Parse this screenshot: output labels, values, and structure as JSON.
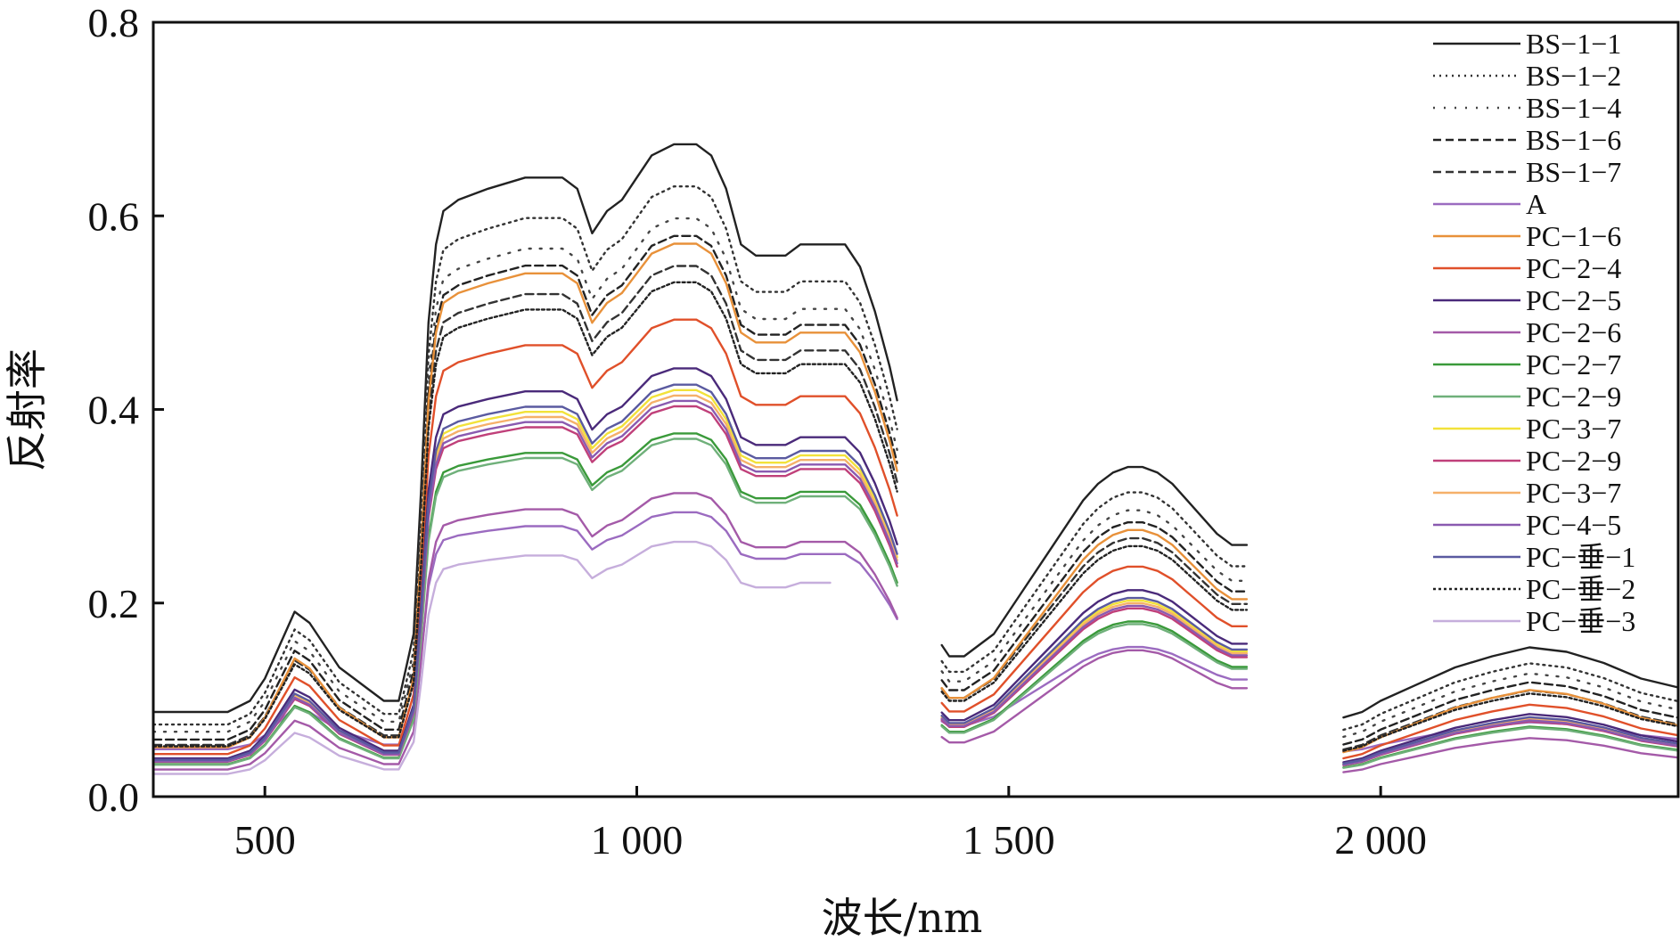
{
  "chart_data": {
    "type": "line",
    "title": "",
    "xlabel": "波长/nm",
    "ylabel": "反射率",
    "xlim": [
      350,
      2400
    ],
    "ylim": [
      0,
      0.8
    ],
    "x_ticks": [
      500,
      1000,
      1500,
      2000
    ],
    "x_tick_labels": [
      "500",
      "1 000",
      "1 500",
      "2 000"
    ],
    "y_ticks": [
      0,
      0.2,
      0.4,
      0.6,
      0.8
    ],
    "y_tick_labels": [
      "0.0",
      "0.2",
      "0.4",
      "0.6",
      "0.8"
    ],
    "grid": false,
    "legend_position": "top-right",
    "series": [
      {
        "name": "BS−1−1",
        "color": "#222222",
        "style": "solid",
        "scale": 1.15,
        "offset": 0.03,
        "band3_end": 2400
      },
      {
        "name": "BS−1−2",
        "color": "#333333",
        "style": "dotted",
        "scale": 1.09,
        "offset": 0.02,
        "band3_end": 2400
      },
      {
        "name": "BS−1−4",
        "color": "#444444",
        "style": "dotted-sparse",
        "scale": 1.04,
        "offset": 0.015,
        "band3_end": 2400
      },
      {
        "name": "BS−1−6",
        "color": "#222222",
        "style": "dashed",
        "scale": 1.02,
        "offset": 0.008,
        "band3_end": 2400
      },
      {
        "name": "BS−1−7",
        "color": "#333333",
        "style": "dashed",
        "scale": 0.97,
        "offset": 0.005,
        "band3_end": 2400
      },
      {
        "name": "A",
        "color": "#9b6bc0",
        "style": "solid",
        "scale": 0.48,
        "offset": 0.025,
        "band3_end": 2400
      },
      {
        "name": "PC−1−6",
        "color": "#e8913a",
        "style": "solid",
        "scale": 1.02,
        "offset": 0.0,
        "band3_end": 2400
      },
      {
        "name": "PC−2−4",
        "color": "#e0502a",
        "style": "solid",
        "scale": 0.88,
        "offset": 0.0,
        "band3_end": 2400
      },
      {
        "name": "PC−2−5",
        "color": "#4a2a7a",
        "style": "solid",
        "scale": 0.79,
        "offset": 0.0,
        "band3_end": 2400
      },
      {
        "name": "PC−2−6",
        "color": "#a45aa8",
        "style": "solid",
        "scale": 0.56,
        "offset": 0.0,
        "band3_end": 2400
      },
      {
        "name": "PC−2−7",
        "color": "#3a9a3a",
        "style": "solid",
        "scale": 0.67,
        "offset": 0.0,
        "band3_end": 2400
      },
      {
        "name": "PC−2−9",
        "color": "#6fb07a",
        "style": "solid",
        "scale": 0.66,
        "offset": 0.0,
        "band3_end": 2400
      },
      {
        "name": "PC−3−7",
        "color": "#f2e23a",
        "style": "solid",
        "scale": 0.75,
        "offset": 0.0,
        "band3_end": 2400
      },
      {
        "name": "PC−2−9",
        "color": "#c0407a",
        "style": "solid",
        "scale": 0.72,
        "offset": 0.0,
        "band3_end": 2400
      },
      {
        "name": "PC−3−7",
        "color": "#f5b06a",
        "style": "solid",
        "scale": 0.74,
        "offset": 0.0,
        "band3_end": 2400
      },
      {
        "name": "PC−4−5",
        "color": "#8a5ab0",
        "style": "solid",
        "scale": 0.73,
        "offset": 0.0,
        "band3_end": 2400
      },
      {
        "name": "PC−垂−1",
        "color": "#5a5aa0",
        "style": "solid",
        "scale": 0.76,
        "offset": 0.0,
        "band3_end": 2400
      },
      {
        "name": "PC−垂−2",
        "color": "#222222",
        "style": "dotted-dense",
        "scale": 0.94,
        "offset": 0.005,
        "band3_end": 2400
      },
      {
        "name": "PC−垂−3",
        "color": "#c6aedc",
        "style": "solid",
        "scale": 0.47,
        "offset": 0.0,
        "band3_end": 1270
      }
    ],
    "base_spectrum": {
      "band1_x": [
        350,
        400,
        450,
        480,
        500,
        520,
        540,
        560,
        580,
        600,
        620,
        640,
        660,
        680,
        700,
        710,
        720,
        730,
        740,
        760,
        800,
        850,
        900,
        920,
        940,
        960,
        980,
        1000,
        1020,
        1050,
        1080,
        1100,
        1120,
        1140,
        1160,
        1180,
        1200,
        1220,
        1240,
        1260,
        1280,
        1300,
        1320,
        1340,
        1350
      ],
      "band1_y": [
        0.05,
        0.05,
        0.05,
        0.06,
        0.08,
        0.11,
        0.14,
        0.13,
        0.11,
        0.09,
        0.08,
        0.07,
        0.06,
        0.06,
        0.12,
        0.25,
        0.4,
        0.47,
        0.5,
        0.51,
        0.52,
        0.53,
        0.53,
        0.52,
        0.48,
        0.5,
        0.51,
        0.53,
        0.55,
        0.56,
        0.56,
        0.55,
        0.52,
        0.47,
        0.46,
        0.46,
        0.46,
        0.47,
        0.47,
        0.47,
        0.47,
        0.45,
        0.41,
        0.36,
        0.33
      ],
      "band2_x": [
        1410,
        1420,
        1440,
        1460,
        1480,
        1500,
        1520,
        1540,
        1560,
        1580,
        1600,
        1620,
        1640,
        1660,
        1680,
        1700,
        1720,
        1740,
        1760,
        1780,
        1800,
        1810,
        1820
      ],
      "band2_y": [
        0.11,
        0.1,
        0.1,
        0.11,
        0.12,
        0.14,
        0.16,
        0.18,
        0.2,
        0.22,
        0.24,
        0.255,
        0.265,
        0.27,
        0.27,
        0.265,
        0.255,
        0.24,
        0.225,
        0.21,
        0.2,
        0.2,
        0.2
      ],
      "band3_x": [
        1950,
        1975,
        2000,
        2050,
        2100,
        2150,
        2200,
        2250,
        2300,
        2350,
        2400
      ],
      "band3_y": [
        0.045,
        0.05,
        0.06,
        0.075,
        0.09,
        0.1,
        0.108,
        0.104,
        0.094,
        0.08,
        0.072
      ]
    }
  }
}
